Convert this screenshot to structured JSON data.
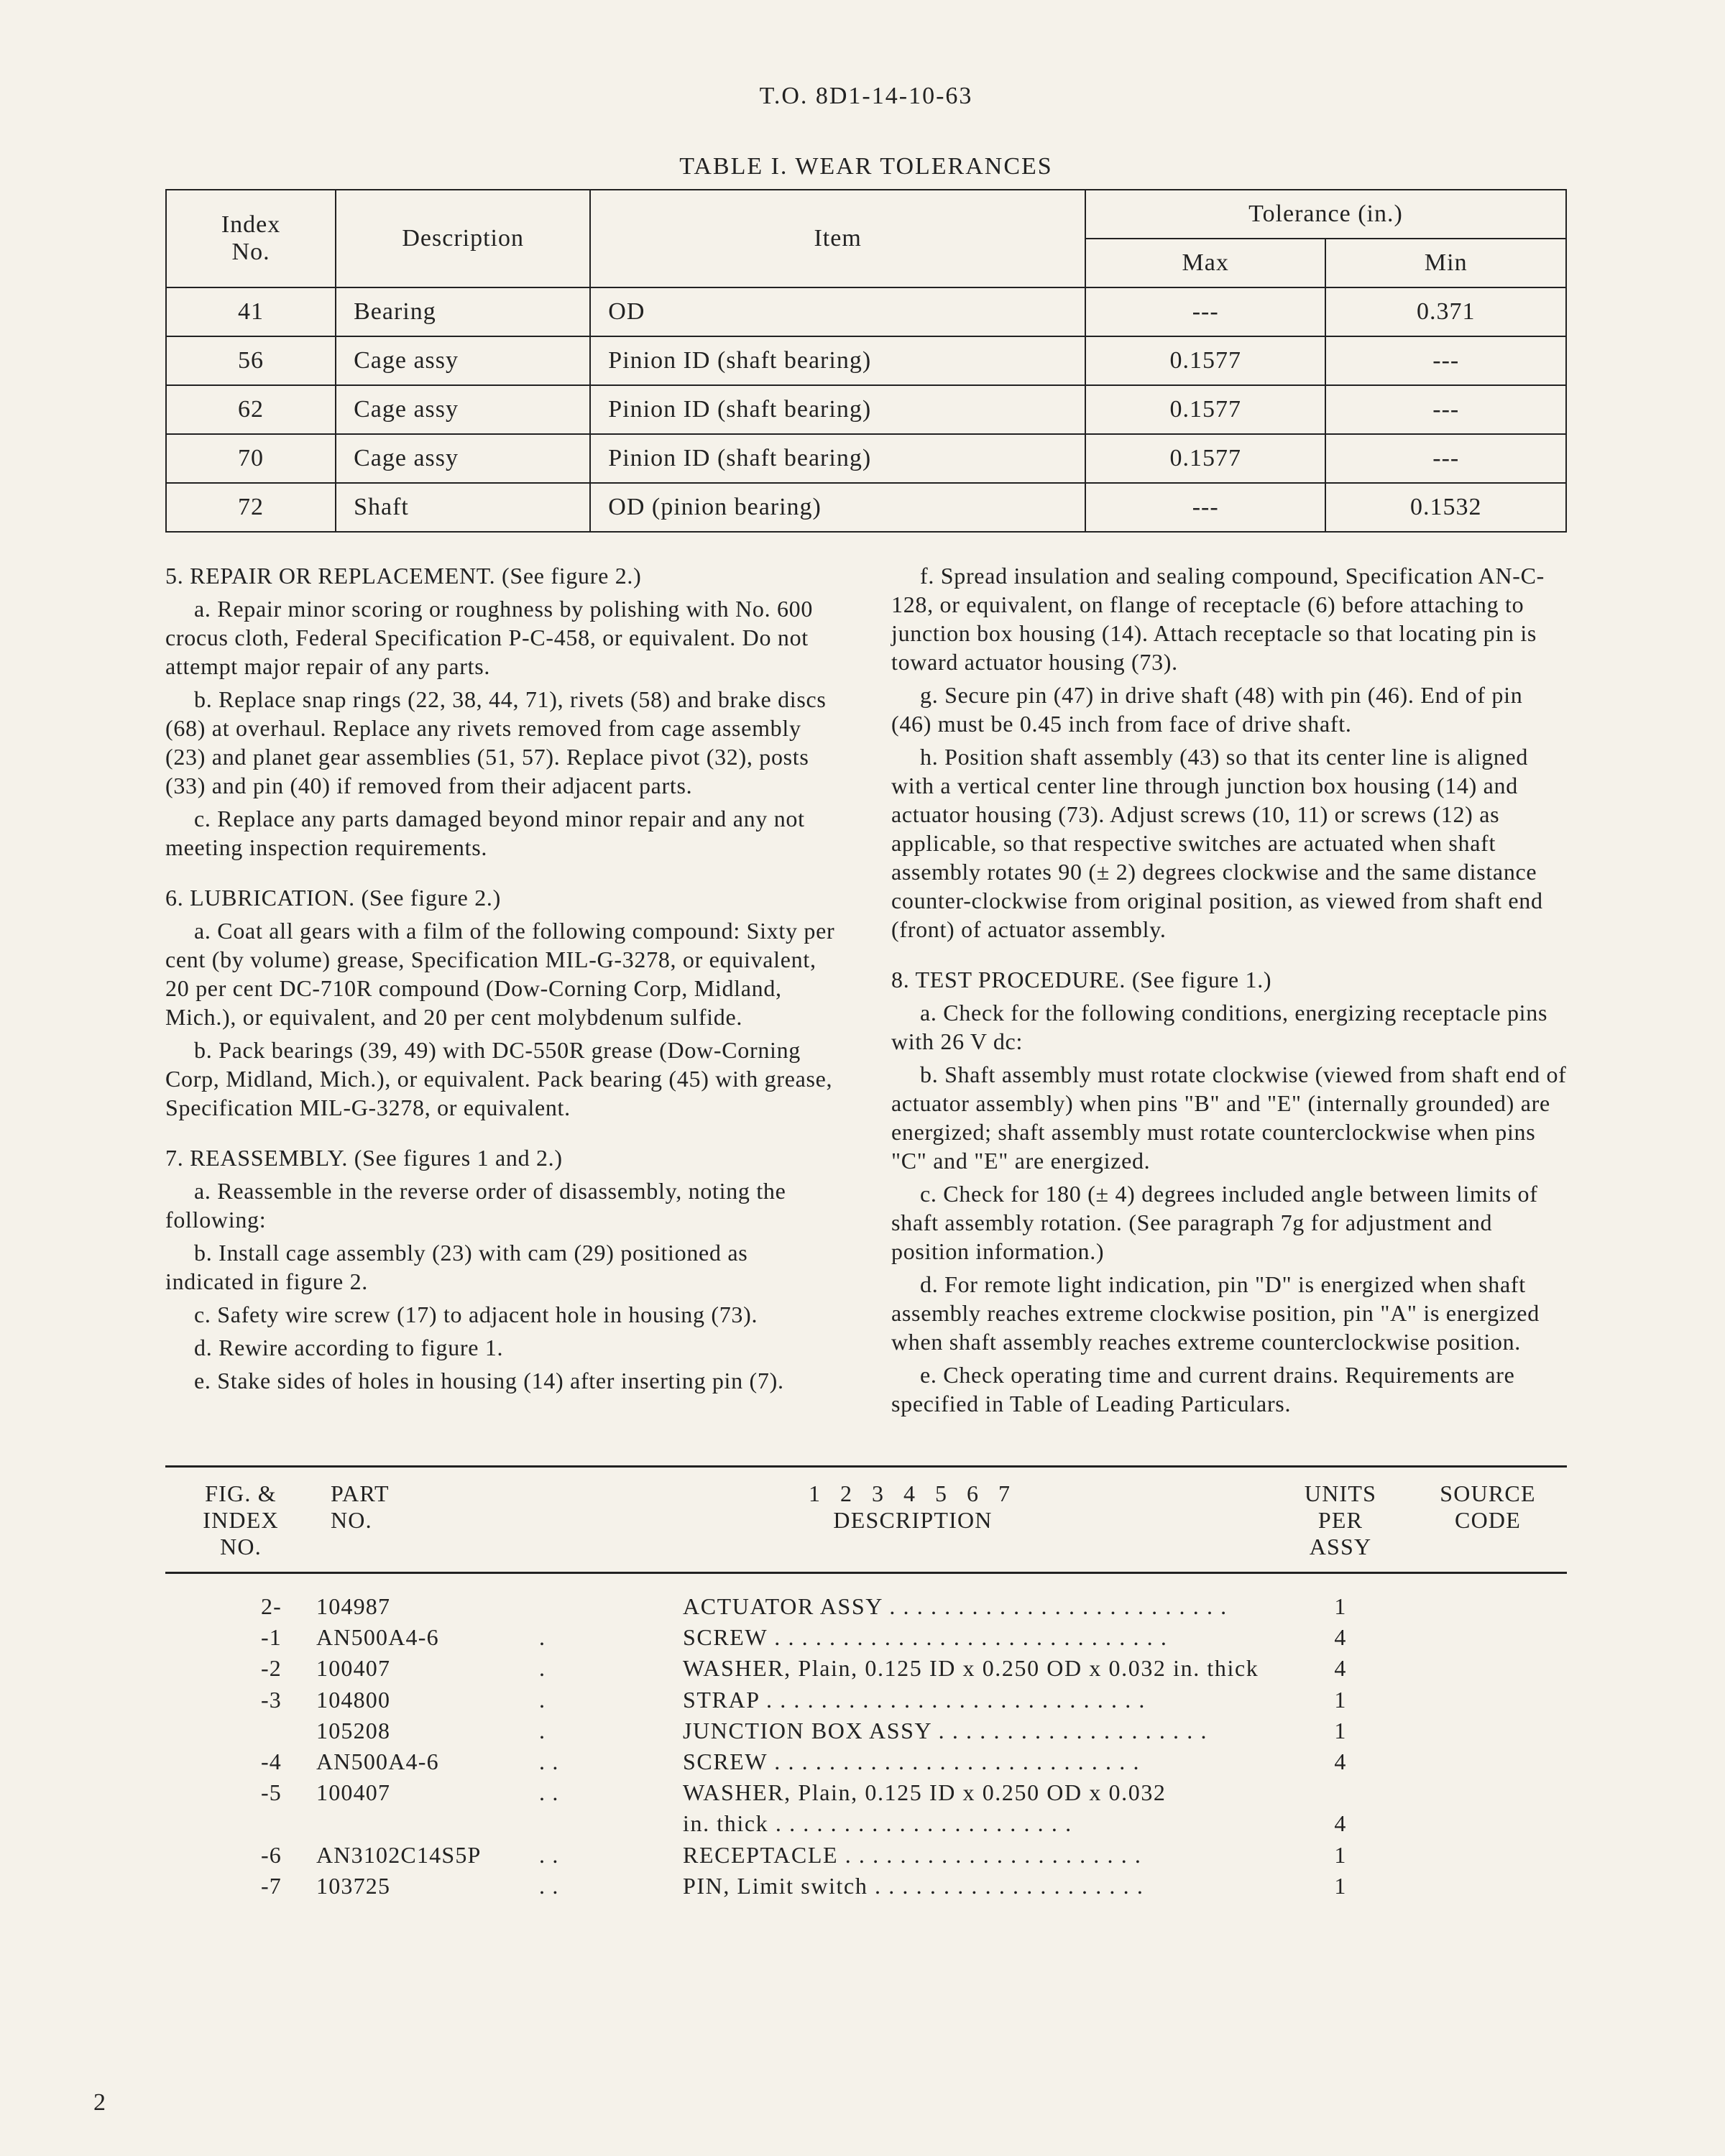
{
  "header": "T.O. 8D1-14-10-63",
  "table": {
    "title": "TABLE I.  WEAR TOLERANCES",
    "head": {
      "index": "Index\nNo.",
      "desc": "Description",
      "item": "Item",
      "tol": "Tolerance (in.)",
      "max": "Max",
      "min": "Min"
    },
    "rows": [
      {
        "idx": "41",
        "desc": "Bearing",
        "item": "OD",
        "max": "---",
        "min": "0.371"
      },
      {
        "idx": "56",
        "desc": "Cage assy",
        "item": "Pinion ID (shaft bearing)",
        "max": "0.1577",
        "min": "---"
      },
      {
        "idx": "62",
        "desc": "Cage assy",
        "item": "Pinion ID (shaft bearing)",
        "max": "0.1577",
        "min": "---"
      },
      {
        "idx": "70",
        "desc": "Cage assy",
        "item": "Pinion ID (shaft bearing)",
        "max": "0.1577",
        "min": "---"
      },
      {
        "idx": "72",
        "desc": "Shaft",
        "item": "OD (pinion bearing)",
        "max": "---",
        "min": "0.1532"
      }
    ]
  },
  "left": {
    "s5head": "5. REPAIR OR REPLACEMENT.  (See figure 2.)",
    "s5a": "a. Repair minor scoring or roughness by polishing with No. 600 crocus cloth, Federal Specification P-C-458, or equivalent. Do not attempt major repair of any parts.",
    "s5b": "b. Replace snap rings (22, 38, 44, 71), rivets (58) and brake discs (68) at overhaul. Replace any rivets removed from cage assembly (23) and planet gear assemblies (51, 57). Replace pivot (32), posts (33) and pin (40) if removed from their adjacent parts.",
    "s5c": "c. Replace any parts damaged beyond minor repair and any not meeting inspection requirements.",
    "s6head": "6. LUBRICATION.  (See figure 2.)",
    "s6a": "a. Coat all gears with a film of the following compound: Sixty per cent (by volume) grease, Specification MIL-G-3278, or equivalent, 20 per cent DC-710R compound (Dow-Corning Corp, Midland, Mich.), or equivalent, and 20 per cent molybdenum sulfide.",
    "s6b": "b. Pack bearings (39, 49) with DC-550R grease (Dow-Corning Corp, Midland, Mich.), or equivalent. Pack bearing (45) with grease, Specification MIL-G-3278, or equivalent.",
    "s7head": "7. REASSEMBLY.  (See figures 1 and 2.)",
    "s7a": "a. Reassemble in the reverse order of disassembly, noting the following:",
    "s7b": "b. Install cage assembly (23) with cam (29) positioned as indicated in figure 2.",
    "s7c": "c. Safety wire screw (17) to adjacent hole in housing (73).",
    "s7d": "d. Rewire according to figure 1.",
    "s7e": "e. Stake sides of holes in housing (14) after inserting pin (7)."
  },
  "right": {
    "s7f": "f. Spread insulation and sealing compound, Specification AN-C-128, or equivalent, on flange of receptacle (6) before attaching to junction box housing (14). Attach receptacle so that locating pin is toward actuator housing (73).",
    "s7g": "g. Secure pin (47) in drive shaft (48) with pin (46). End of pin (46) must be 0.45 inch from face of drive shaft.",
    "s7h": "h. Position shaft assembly (43) so that its center line is aligned with a vertical center line through junction box housing (14) and actuator housing (73). Adjust screws (10, 11) or screws (12) as applicable, so that respective switches are actuated when shaft assembly rotates 90 (± 2) degrees clockwise and the same distance counter-clockwise from original position, as viewed from shaft end (front) of actuator assembly.",
    "s8head": "8. TEST PROCEDURE.  (See figure 1.)",
    "s8a": "a. Check for the following conditions, energizing receptacle pins with 26 V dc:",
    "s8b": "b. Shaft assembly must rotate clockwise (viewed from shaft end of actuator assembly) when pins \"B\" and \"E\" (internally grounded) are energized; shaft assembly must rotate counterclockwise when pins \"C\" and \"E\" are energized.",
    "s8c": "c. Check for 180 (± 4) degrees included angle between limits of shaft assembly rotation. (See paragraph 7g for adjustment and position information.)",
    "s8d": "d. For remote light indication, pin \"D\" is energized when shaft assembly reaches extreme clockwise position, pin \"A\" is energized when shaft assembly reaches extreme counterclockwise position.",
    "s8e": "e. Check operating time and current drains. Requirements are specified in Table of Leading Particulars."
  },
  "parts": {
    "head": {
      "figidx": "FIG. &\nINDEX\nNO.",
      "part": "PART\nNO.",
      "indent": "1  2  3  4  5  6  7",
      "desc": "DESCRIPTION",
      "units": "UNITS\nPER\nASSY",
      "src": "SOURCE\nCODE"
    },
    "rows": [
      {
        "idx": "2-",
        "part": "104987",
        "ind": "",
        "desc": "ACTUATOR ASSY . . . . . . . . . . . . . . . . . . . . . . . . .",
        "units": "1"
      },
      {
        "idx": "-1",
        "part": "AN500A4-6",
        "ind": ".",
        "desc": "SCREW  . . . . . . . . . . . . . . . . . . . . . . . . . . . . .",
        "units": "4"
      },
      {
        "idx": "-2",
        "part": "100407",
        "ind": ".",
        "desc": "WASHER, Plain, 0.125 ID x 0.250 OD x 0.032 in. thick",
        "units": "4"
      },
      {
        "idx": "-3",
        "part": "104800",
        "ind": ".",
        "desc": "STRAP    . . . . . . . . . . . . . . . . . . . . . . . . . . . .",
        "units": "1"
      },
      {
        "idx": "",
        "part": "105208",
        "ind": ".",
        "desc": "JUNCTION BOX ASSY  . . . . . . . . . . . . . . . . . . . .",
        "units": "1"
      },
      {
        "idx": "-4",
        "part": "AN500A4-6",
        "ind": ".  .",
        "desc": "SCREW  . . . . . . . . . . . . . . . . . . . . . . . . . . .",
        "units": "4"
      },
      {
        "idx": "-5",
        "part": "100407",
        "ind": ".  .",
        "desc": "WASHER, Plain, 0.125 ID x 0.250 OD x 0.032",
        "units": ""
      },
      {
        "idx": "",
        "part": "",
        "ind": "",
        "desc": "                  in. thick  . . . . . . . . . . . . . . . . . . . . . .",
        "units": "4"
      },
      {
        "idx": "-6",
        "part": "AN3102C14S5P",
        "ind": ".  .",
        "desc": "RECEPTACLE  . . . . . . . . . . . . . . . . . . . . . .",
        "units": "1"
      },
      {
        "idx": "-7",
        "part": "103725",
        "ind": ".  .",
        "desc": "PIN, Limit switch  . . . . . . . . . . . . . . . . . . . .",
        "units": "1"
      }
    ]
  },
  "pageNum": "2"
}
